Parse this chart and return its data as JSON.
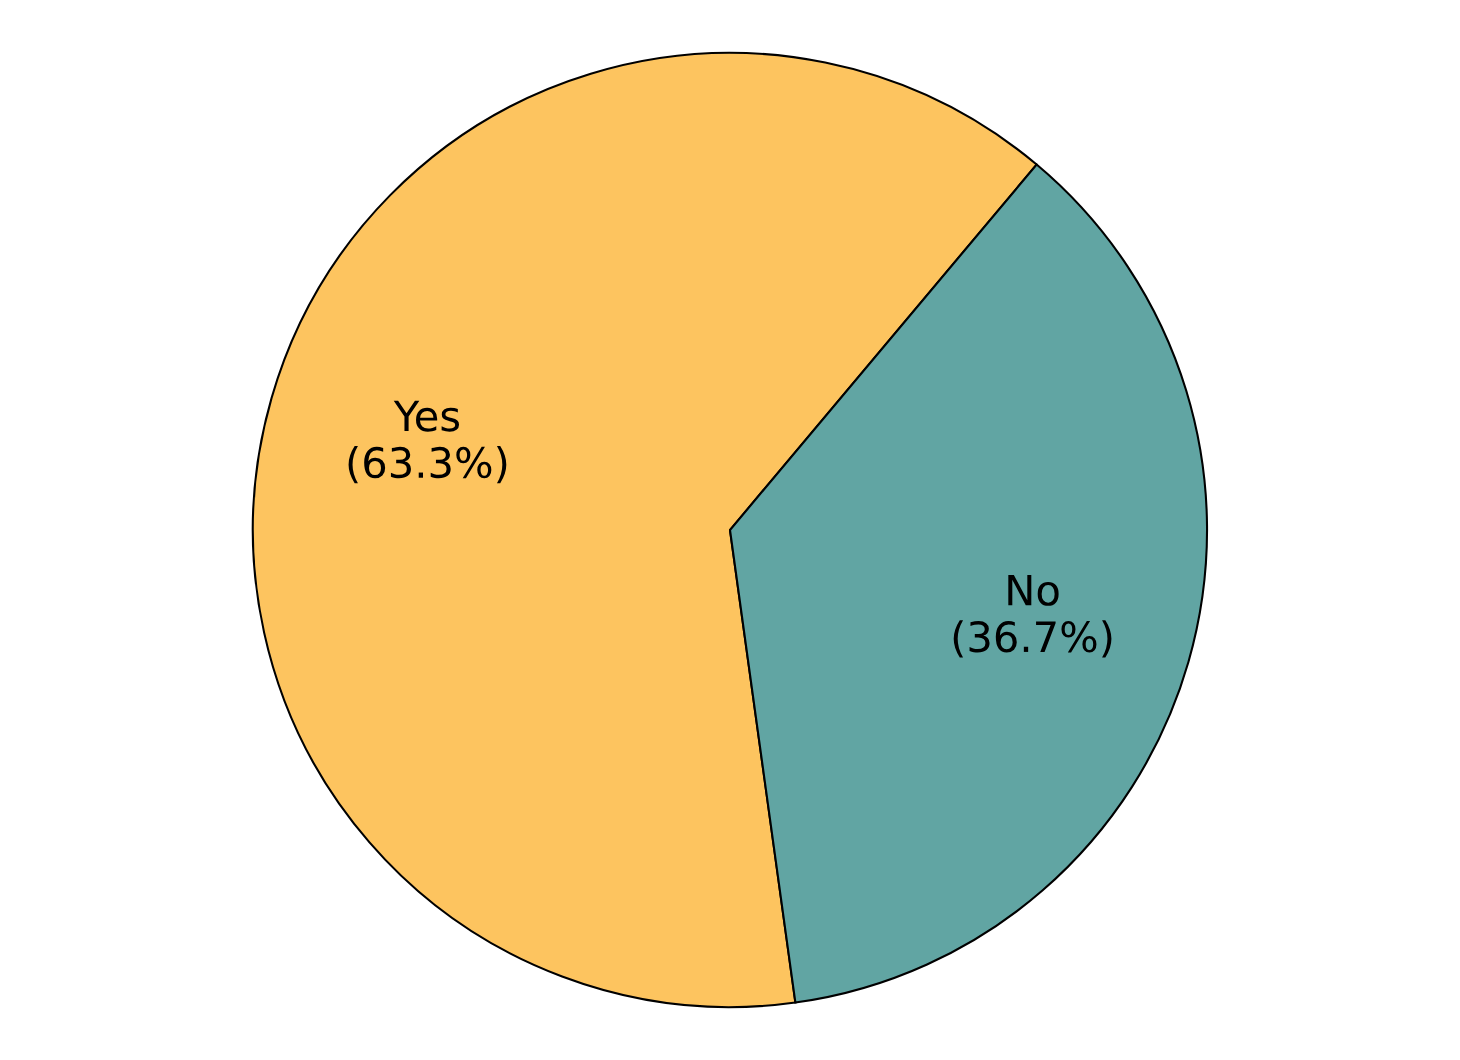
{
  "chart_data": {
    "type": "pie",
    "categories": [
      "Yes",
      "No"
    ],
    "values": [
      63.3,
      36.7
    ],
    "colors": [
      "#fdc45f",
      "#61a5a3"
    ],
    "value_labels": [
      "(63.3%)",
      "(36.7%)"
    ]
  }
}
